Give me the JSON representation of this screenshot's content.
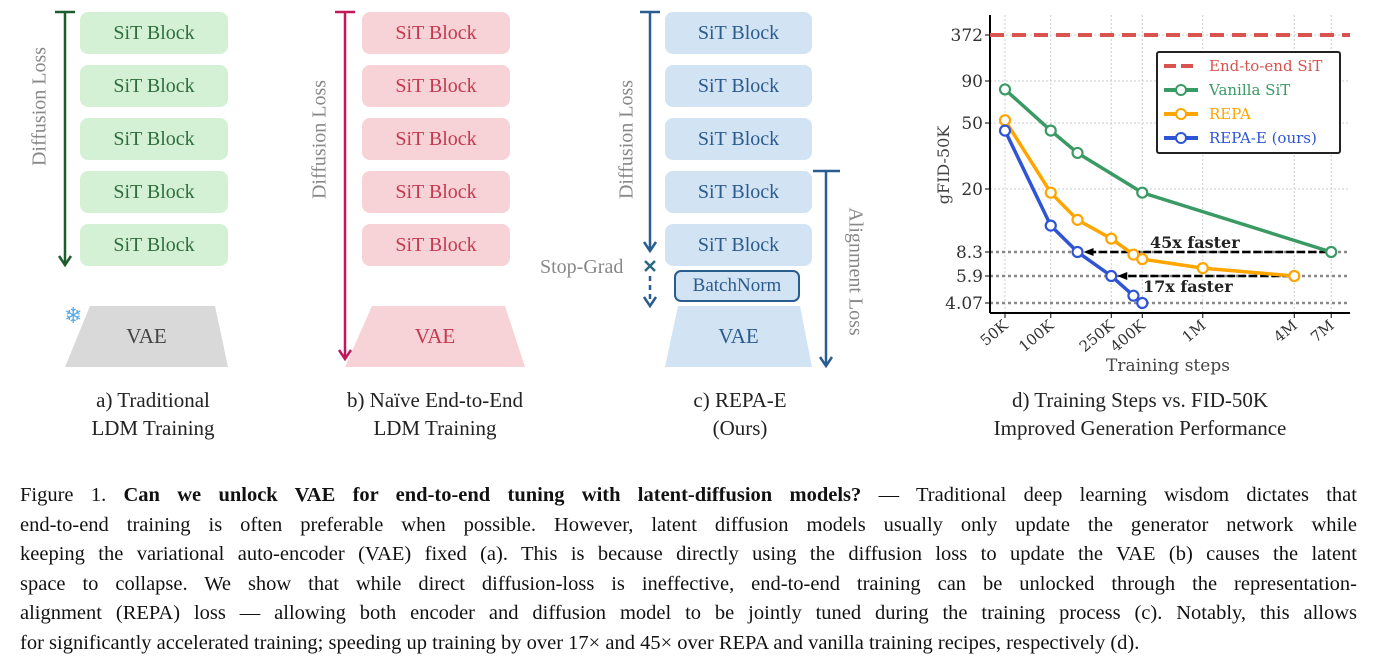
{
  "panels": {
    "a": {
      "blocks": [
        "SiT Block",
        "SiT Block",
        "SiT Block",
        "SiT Block",
        "SiT Block"
      ],
      "vae": "VAE",
      "loss_label": "Diffusion Loss",
      "caption": [
        "a) Traditional",
        "LDM Training"
      ],
      "frozen_icon": "snowflake-icon",
      "color": "#2f6e3c"
    },
    "b": {
      "blocks": [
        "SiT Block",
        "SiT Block",
        "SiT Block",
        "SiT Block",
        "SiT Block"
      ],
      "vae": "VAE",
      "loss_label": "Diffusion Loss",
      "caption": [
        "b) Naïve End-to-End",
        "LDM Training"
      ],
      "color": "#c2185b"
    },
    "c": {
      "blocks": [
        "SiT Block",
        "SiT Block",
        "SiT Block",
        "SiT Block",
        "SiT Block"
      ],
      "batchnorm": "BatchNorm",
      "vae": "VAE",
      "loss_label": "Diffusion Loss",
      "align_label": "Alignment Loss",
      "stop_grad": "Stop-Grad",
      "caption": [
        "c) REPA-E",
        "(Ours)"
      ],
      "color": "#2a5d8f"
    },
    "d": {
      "caption": [
        "d) Training Steps vs. FID-50K",
        "Improved Generation Performance"
      ]
    }
  },
  "chart_data": {
    "type": "line",
    "xlabel": "Training steps",
    "ylabel": "gFID-50K",
    "x_scale": "log",
    "y_scale": "log",
    "x_ticks": [
      {
        "v": 50000,
        "label": "50K"
      },
      {
        "v": 100000,
        "label": "100K"
      },
      {
        "v": 250000,
        "label": "250K"
      },
      {
        "v": 400000,
        "label": "400K"
      },
      {
        "v": 1000000,
        "label": "1M"
      },
      {
        "v": 4000000,
        "label": "4M"
      },
      {
        "v": 7000000,
        "label": "7M"
      }
    ],
    "y_ticks": [
      {
        "v": 372,
        "label": "372"
      },
      {
        "v": 90,
        "label": "90"
      },
      {
        "v": 50,
        "label": "50"
      },
      {
        "v": 20,
        "label": "20"
      },
      {
        "v": 8.3,
        "label": "8.3"
      },
      {
        "v": 5.9,
        "label": "5.9"
      },
      {
        "v": 4.07,
        "label": "4.07"
      }
    ],
    "grid": true,
    "legend_placement": "top-right",
    "series": [
      {
        "name": "End-to-end SiT",
        "color": "#d9534f",
        "style": "dashed",
        "hline": 372
      },
      {
        "name": "Vanilla SiT",
        "color": "#3a9a64",
        "x": [
          50000,
          100000,
          150000,
          400000,
          7000000
        ],
        "y": [
          80,
          45,
          33,
          19,
          8.3
        ]
      },
      {
        "name": "REPA",
        "color": "#ffa500",
        "x": [
          50000,
          100000,
          150000,
          250000,
          350000,
          400000,
          1000000,
          4000000
        ],
        "y": [
          52,
          19,
          13,
          10,
          8,
          7.5,
          6.6,
          5.9
        ]
      },
      {
        "name": "REPA-E (ours)",
        "color": "#2f55d4",
        "x": [
          50000,
          100000,
          150000,
          250000,
          350000,
          400000
        ],
        "y": [
          45,
          12,
          8.3,
          5.9,
          4.5,
          4.07
        ]
      }
    ],
    "annotations": [
      {
        "text": "45x faster",
        "from_x": 7000000,
        "to_x": 150000,
        "y": 8.3
      },
      {
        "text": "17x faster",
        "from_x": 4000000,
        "to_x": 250000,
        "y": 5.9
      }
    ]
  },
  "caption": {
    "lines": [
      [
        "Figure 1. ",
        "Can we unlock VAE for end-to-end tuning with latent-diffusion models?",
        " — Traditional deep learning wisdom dictates that"
      ],
      "end-to-end training is often preferable when possible. However, latent diffusion models usually only update the generator network while",
      "keeping the variational auto-encoder (VAE) fixed (a). This is because directly using the diffusion loss to update the VAE (b) causes the latent",
      "space to collapse. We show that while direct diffusion-loss is ineffective, end-to-end training can be unlocked through the representation-",
      "alignment (REPA) loss — allowing both encoder and diffusion model to be jointly tuned during the training process (c). Notably, this allows",
      "for significantly accelerated training; speeding up training by over 17× and 45× over REPA and vanilla training recipes, respectively (d)."
    ]
  }
}
